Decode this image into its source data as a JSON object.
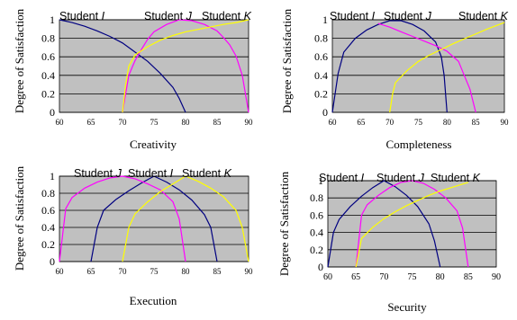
{
  "colors": {
    "plot_background": "#c0c0c0",
    "gridline": "#000000",
    "student_i": "#000080",
    "student_j": "#ff00ff",
    "student_k": "#ffff00"
  },
  "chart_data": [
    {
      "type": "line",
      "xlabel": "Creativity",
      "ylabel": "Degree of Satisfaction",
      "xlim": [
        60,
        90
      ],
      "ylim": [
        0,
        1
      ],
      "x_ticks": [
        "60",
        "65",
        "70",
        "75",
        "80",
        "85",
        "90"
      ],
      "y_ticks": [
        "0",
        "0.2",
        "0.4",
        "0.6",
        "0.8",
        "1"
      ],
      "grid": "horizontal",
      "series_labels": [
        "Student I",
        "Student J",
        "Student K"
      ],
      "series": [
        {
          "name": "Student I",
          "color": "#000080",
          "x": [
            60,
            62,
            64,
            66,
            68,
            70,
            72,
            74,
            76,
            78,
            79,
            80
          ],
          "y": [
            1.0,
            0.97,
            0.93,
            0.88,
            0.82,
            0.75,
            0.65,
            0.55,
            0.42,
            0.27,
            0.15,
            0.0
          ]
        },
        {
          "name": "Student J",
          "color": "#ff00ff",
          "x": [
            70,
            70.5,
            71,
            72,
            73,
            74,
            75,
            77,
            79,
            81,
            83,
            85,
            86,
            87,
            88,
            89,
            90
          ],
          "y": [
            0.0,
            0.2,
            0.4,
            0.56,
            0.68,
            0.79,
            0.87,
            0.95,
            1.0,
            0.99,
            0.95,
            0.88,
            0.81,
            0.73,
            0.61,
            0.4,
            0.0
          ]
        },
        {
          "name": "Student K",
          "color": "#ffff00",
          "x": [
            70,
            70.5,
            71,
            72,
            74,
            76,
            78,
            80,
            83,
            86,
            88,
            90
          ],
          "y": [
            0.0,
            0.3,
            0.5,
            0.62,
            0.71,
            0.78,
            0.83,
            0.87,
            0.91,
            0.95,
            0.97,
            1.0
          ]
        }
      ]
    },
    {
      "type": "line",
      "xlabel": "Completeness",
      "ylabel": "Degree of Satisfaction",
      "xlim": [
        60,
        90
      ],
      "ylim": [
        0,
        1
      ],
      "x_ticks": [
        "60",
        "65",
        "70",
        "75",
        "80",
        "85",
        "90"
      ],
      "y_ticks": [
        "0",
        "0.2",
        "0.4",
        "0.6",
        "0.8",
        "1"
      ],
      "grid": "horizontal",
      "series_labels": [
        "Student I",
        "Student J",
        "Student K"
      ],
      "series": [
        {
          "name": "Student I",
          "color": "#000080",
          "x": [
            60,
            61,
            62,
            64,
            66,
            68,
            70,
            72,
            74,
            76,
            78,
            79,
            79.5,
            80
          ],
          "y": [
            0.0,
            0.42,
            0.65,
            0.8,
            0.89,
            0.95,
            0.99,
            0.99,
            0.95,
            0.88,
            0.76,
            0.6,
            0.4,
            0.0
          ]
        },
        {
          "name": "Student J",
          "color": "#ff00ff",
          "x": [
            68,
            70,
            72,
            74,
            76,
            78,
            80,
            82,
            83,
            84,
            85
          ],
          "y": [
            0.96,
            0.92,
            0.87,
            0.82,
            0.77,
            0.72,
            0.66,
            0.55,
            0.4,
            0.25,
            0.0
          ]
        },
        {
          "name": "Student K",
          "color": "#ffff00",
          "x": [
            70,
            70.5,
            71,
            73,
            75,
            77,
            79,
            81,
            84,
            87,
            90
          ],
          "y": [
            0.0,
            0.2,
            0.32,
            0.45,
            0.55,
            0.62,
            0.68,
            0.74,
            0.82,
            0.9,
            0.97
          ]
        }
      ]
    },
    {
      "type": "line",
      "xlabel": "Execution",
      "ylabel": "Degree of Satisfaction",
      "xlim": [
        60,
        90
      ],
      "ylim": [
        0,
        1
      ],
      "x_ticks": [
        "60",
        "65",
        "70",
        "75",
        "80",
        "85",
        "90"
      ],
      "y_ticks": [
        "0",
        "0.2",
        "0.4",
        "0.6",
        "0.8",
        "1"
      ],
      "grid": "horizontal",
      "series_labels": [
        "Student J",
        "Student I",
        "Student K"
      ],
      "series": [
        {
          "name": "Student I",
          "color": "#000080",
          "x": [
            65,
            66,
            67,
            69,
            71,
            73,
            75,
            77,
            79,
            81,
            83,
            84,
            85
          ],
          "y": [
            0.0,
            0.4,
            0.6,
            0.73,
            0.83,
            0.92,
            1.0,
            0.93,
            0.84,
            0.72,
            0.55,
            0.4,
            0.0
          ]
        },
        {
          "name": "Student J",
          "color": "#ff00ff",
          "x": [
            60,
            61,
            62,
            64,
            66,
            68,
            70,
            72,
            74,
            76,
            78,
            79,
            80
          ],
          "y": [
            0.0,
            0.62,
            0.75,
            0.86,
            0.93,
            0.98,
            1.0,
            0.97,
            0.91,
            0.84,
            0.7,
            0.5,
            0.0
          ]
        },
        {
          "name": "Student K",
          "color": "#ffff00",
          "x": [
            70,
            71,
            72,
            74,
            76,
            78,
            80,
            82,
            84,
            86,
            88,
            89,
            90
          ],
          "y": [
            0.0,
            0.4,
            0.56,
            0.7,
            0.82,
            0.91,
            1.0,
            0.94,
            0.86,
            0.76,
            0.6,
            0.4,
            0.0
          ]
        }
      ]
    },
    {
      "type": "line",
      "xlabel": "Security",
      "ylabel": "Degree of Satisfaction",
      "xlim": [
        60,
        90
      ],
      "ylim": [
        0,
        1
      ],
      "x_ticks": [
        "60",
        "65",
        "70",
        "75",
        "80",
        "85",
        "90"
      ],
      "y_ticks": [
        "0",
        "0.2",
        "0.4",
        "0.6",
        "0.8",
        "1"
      ],
      "grid": "horizontal",
      "series_labels": [
        "Student I",
        "Student J",
        "Student K"
      ],
      "series": [
        {
          "name": "Student I",
          "color": "#000080",
          "x": [
            60,
            61,
            62,
            64,
            66,
            68,
            70,
            72,
            74,
            76,
            78,
            79,
            80
          ],
          "y": [
            0.0,
            0.4,
            0.55,
            0.7,
            0.82,
            0.92,
            1.0,
            0.93,
            0.83,
            0.7,
            0.5,
            0.3,
            0.0
          ]
        },
        {
          "name": "Student J",
          "color": "#ff00ff",
          "x": [
            65,
            66,
            67,
            69,
            71,
            73,
            75,
            77,
            79,
            81,
            83,
            84,
            85
          ],
          "y": [
            0.0,
            0.6,
            0.72,
            0.83,
            0.92,
            0.98,
            1.0,
            0.97,
            0.9,
            0.8,
            0.65,
            0.45,
            0.0
          ]
        },
        {
          "name": "Student K",
          "color": "#ffff00",
          "x": [
            65,
            66,
            68,
            70,
            72,
            74,
            76,
            78,
            80,
            82,
            84,
            85
          ],
          "y": [
            0.0,
            0.33,
            0.46,
            0.56,
            0.64,
            0.71,
            0.77,
            0.83,
            0.88,
            0.92,
            0.96,
            0.98
          ]
        }
      ]
    }
  ]
}
